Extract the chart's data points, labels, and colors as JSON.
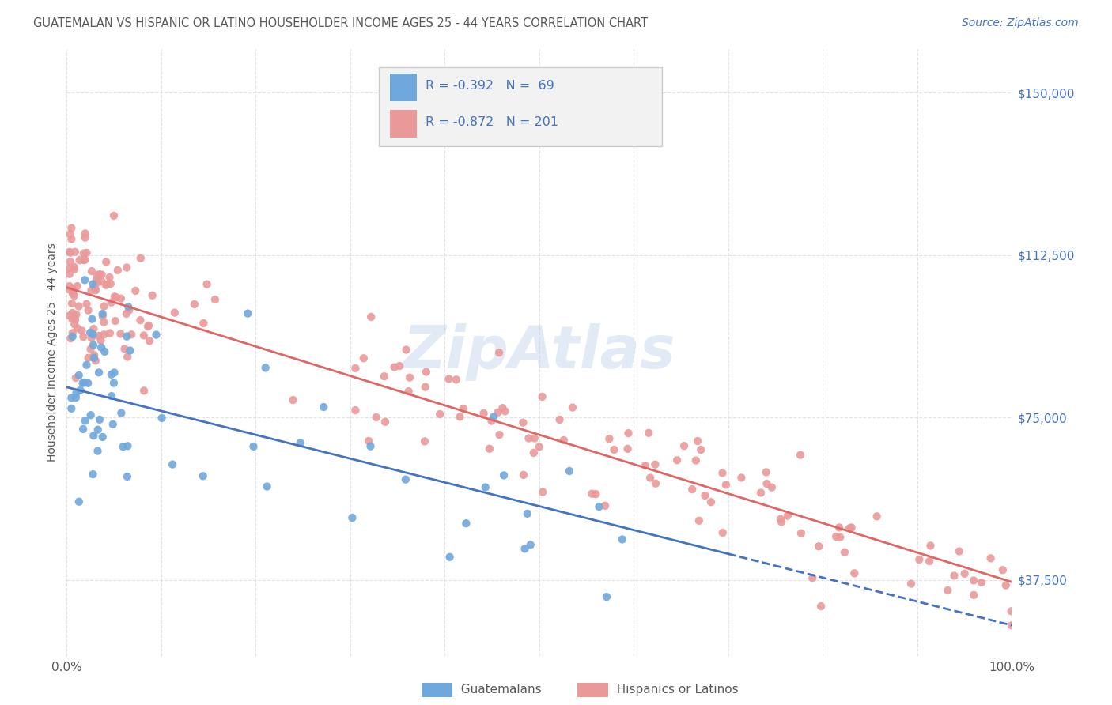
{
  "title": "GUATEMALAN VS HISPANIC OR LATINO HOUSEHOLDER INCOME AGES 25 - 44 YEARS CORRELATION CHART",
  "source": "Source: ZipAtlas.com",
  "ylabel": "Householder Income Ages 25 - 44 years",
  "yticks": [
    37500,
    75000,
    112500,
    150000
  ],
  "ytick_labels": [
    "$37,500",
    "$75,000",
    "$112,500",
    "$150,000"
  ],
  "blue_R": "-0.392",
  "blue_N": "69",
  "pink_R": "-0.872",
  "pink_N": "201",
  "blue_color": "#6fa8dc",
  "pink_color": "#ea9999",
  "blue_line_color": "#4472c4",
  "pink_line_color": "#e06666",
  "watermark": "ZipAtlas",
  "xlim": [
    0,
    100
  ],
  "ylim": [
    20000,
    160000
  ],
  "bg_color": "#ffffff",
  "grid_color": "#dddddd",
  "title_color": "#595959",
  "source_color": "#4472c4",
  "ytick_color": "#4472c4",
  "xtick_color": "#595959",
  "legend_box_color": "#f2f2f2",
  "legend_border_color": "#cccccc",
  "blue_slope": -550,
  "blue_intercept": 82000,
  "pink_slope": -680,
  "pink_intercept": 105000,
  "blue_solid_end": 70,
  "blue_seed": 123,
  "pink_seed": 456
}
